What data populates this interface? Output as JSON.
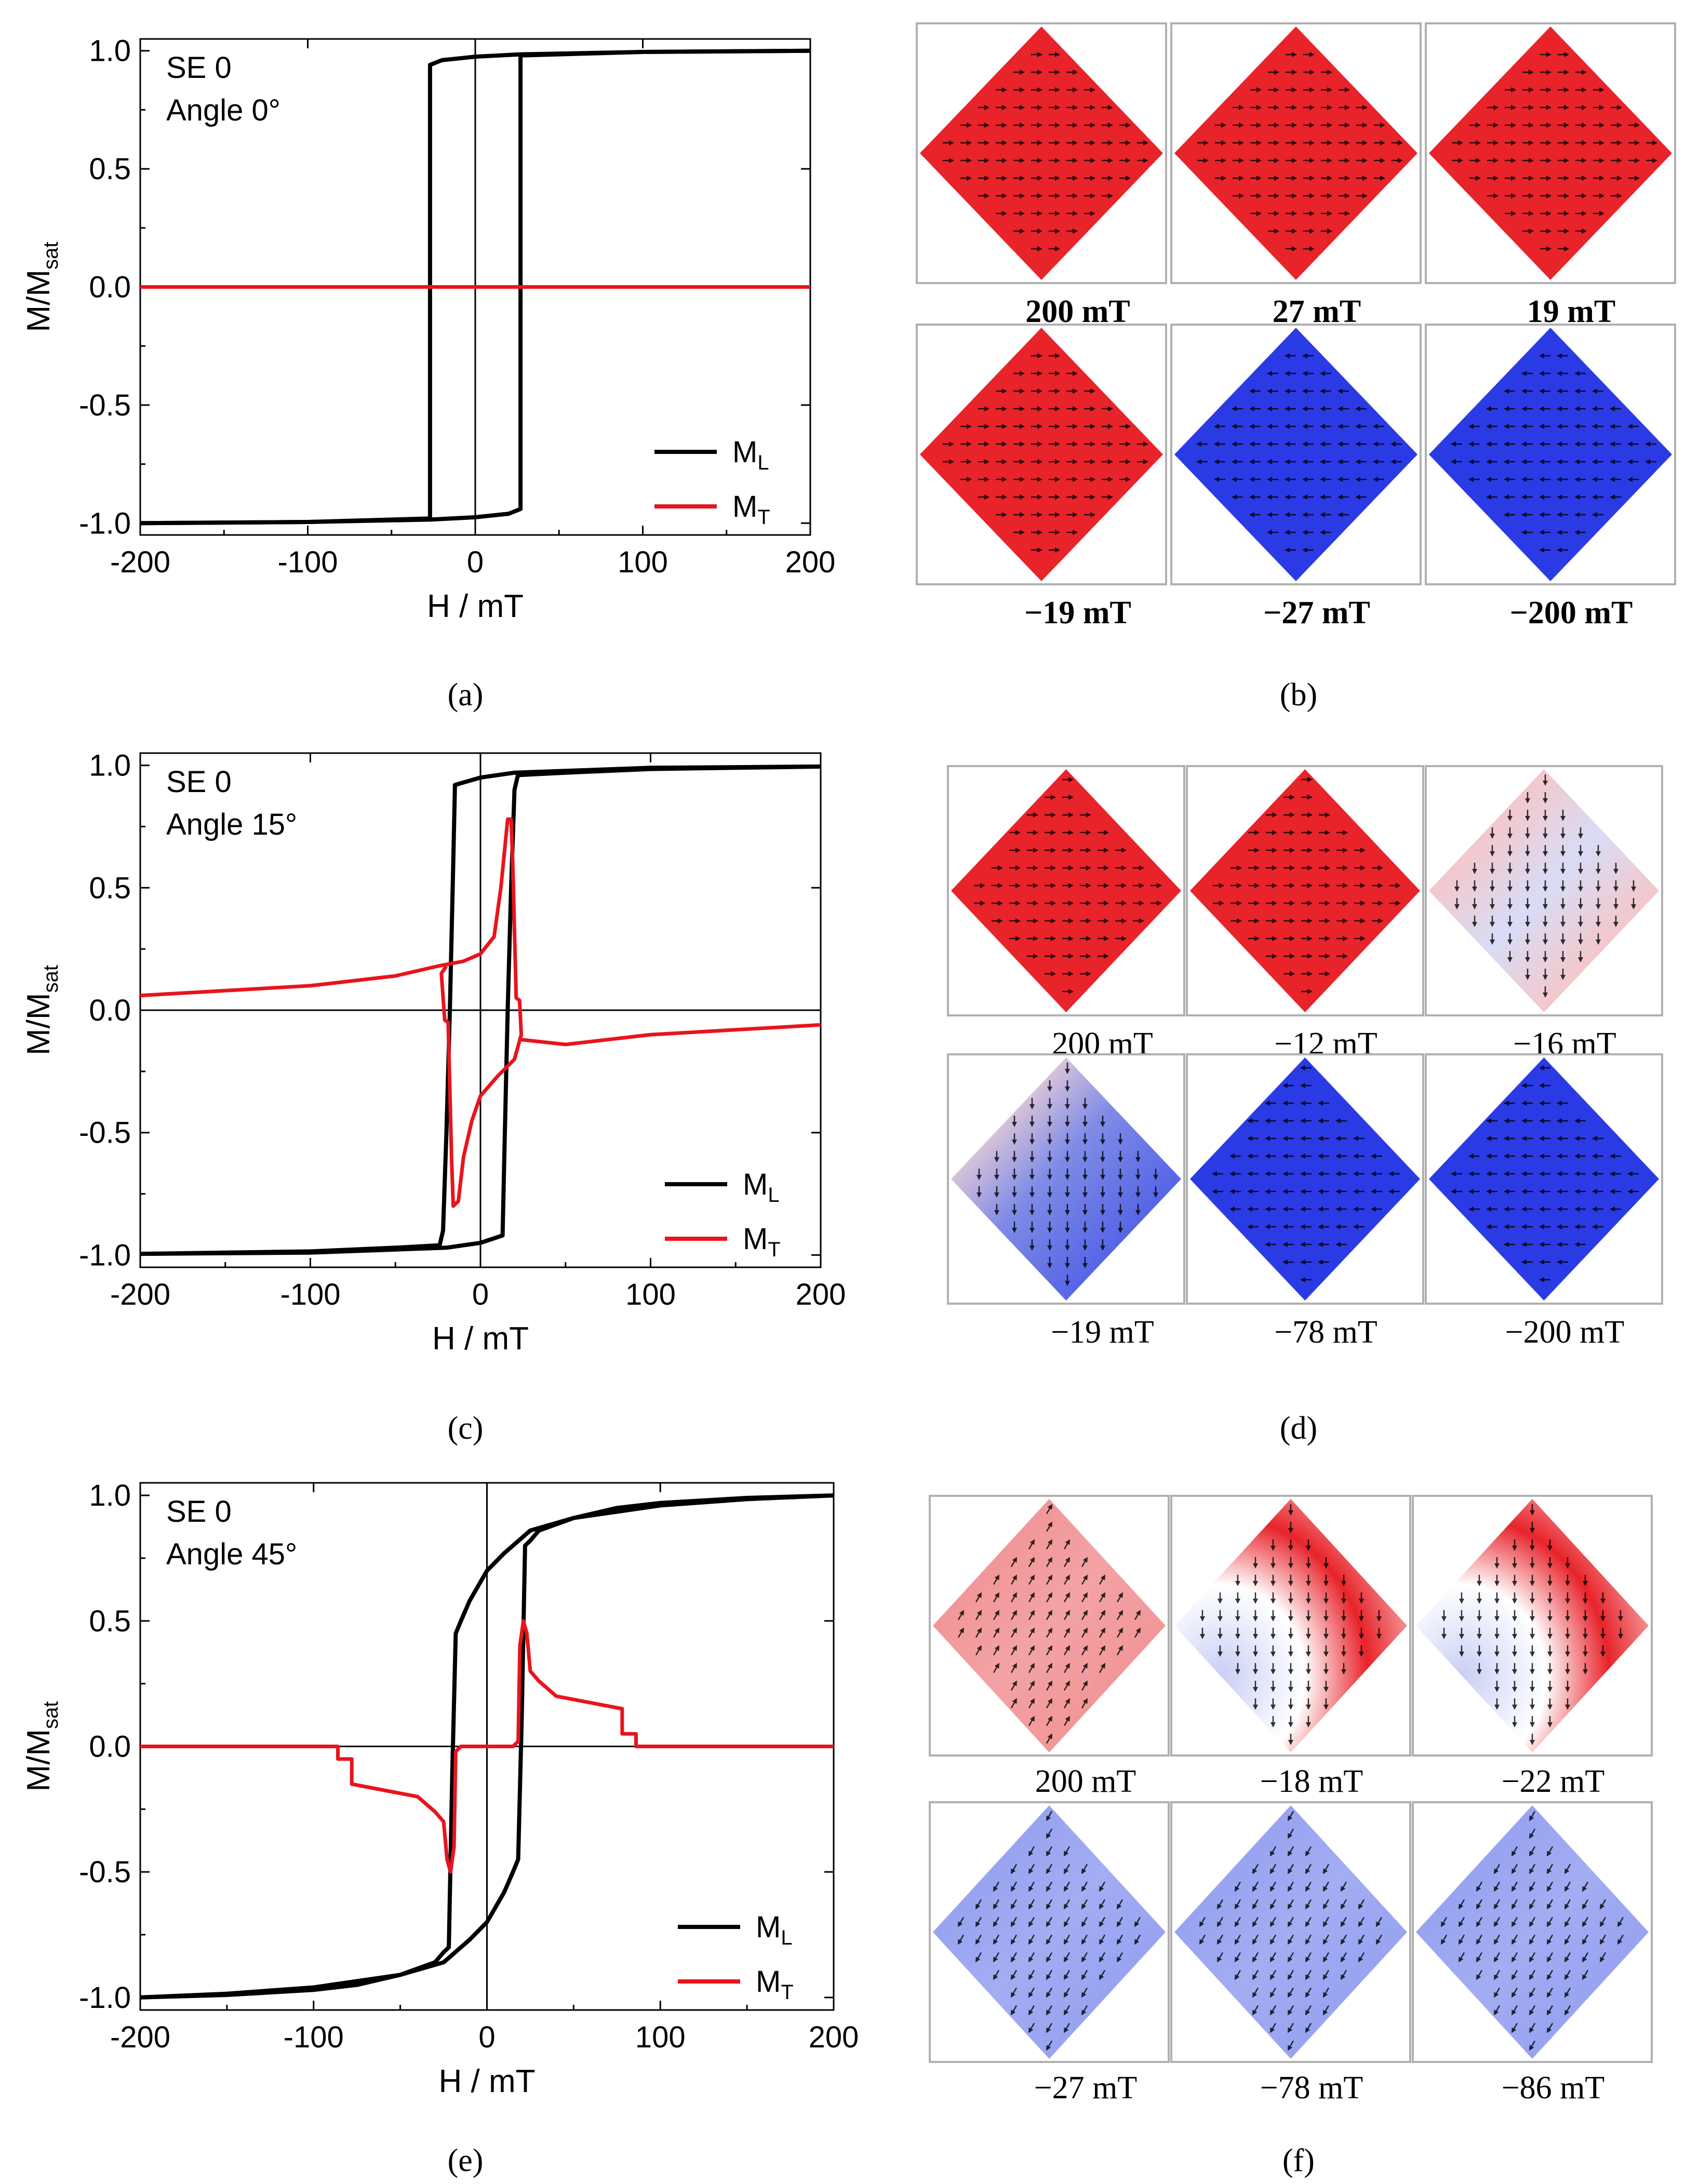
{
  "colors": {
    "ML": "#000000",
    "MT": "#e8141c",
    "red": "#e8232a",
    "blue": "#2a3be6",
    "white": "#ffffff"
  },
  "panel_labels": [
    "(a)",
    "(b)",
    "(c)",
    "(d)",
    "(e)",
    "(f)"
  ],
  "chart_data": [
    {
      "type": "line",
      "id": "a",
      "annotation": [
        "SE 0",
        "Angle 0°"
      ],
      "xlabel": "H / mT",
      "ylabel_main": "M/M",
      "ylabel_sub": "sat",
      "xlim": [
        -200,
        200
      ],
      "ylim": [
        -1.05,
        1.05
      ],
      "xticks": [
        -200,
        -100,
        0,
        100,
        200
      ],
      "xtick_labels": [
        "-200",
        "-100",
        "0",
        "100",
        "200"
      ],
      "yticks": [
        1.0,
        0.5,
        0.0,
        -0.5,
        -1.0
      ],
      "ytick_labels": [
        "1.0",
        "0.5",
        "0.0",
        "-0.5",
        "-1.0"
      ],
      "legend": [
        {
          "name": "M",
          "sub": "L"
        },
        {
          "name": "M",
          "sub": "T"
        }
      ],
      "series": [
        {
          "name": "ML",
          "color": "#000000",
          "points": [
            [
              -200,
              -1.0
            ],
            [
              -100,
              -0.995
            ],
            [
              -50,
              -0.985
            ],
            [
              -27,
              -0.98
            ],
            [
              -27,
              0.94
            ],
            [
              -20,
              0.96
            ],
            [
              0,
              0.975
            ],
            [
              27,
              0.985
            ],
            [
              100,
              0.995
            ],
            [
              200,
              1.0
            ]
          ]
        },
        {
          "name": "ML",
          "color": "#000000",
          "points": [
            [
              200,
              1.0
            ],
            [
              100,
              0.995
            ],
            [
              50,
              0.985
            ],
            [
              27,
              0.98
            ],
            [
              27,
              -0.94
            ],
            [
              20,
              -0.96
            ],
            [
              0,
              -0.975
            ],
            [
              -27,
              -0.985
            ],
            [
              -100,
              -0.995
            ],
            [
              -200,
              -1.0
            ]
          ]
        },
        {
          "name": "MT",
          "color": "#e8141c",
          "points": [
            [
              -200,
              0.0
            ],
            [
              200,
              0.0
            ]
          ]
        }
      ]
    },
    {
      "type": "line",
      "id": "c",
      "annotation": [
        "SE 0",
        "Angle 15°"
      ],
      "xlabel": "H / mT",
      "ylabel_main": "M/M",
      "ylabel_sub": "sat",
      "xlim": [
        -200,
        200
      ],
      "ylim": [
        -1.05,
        1.05
      ],
      "xticks": [
        -200,
        -100,
        0,
        100,
        200
      ],
      "xtick_labels": [
        "-200",
        "-100",
        "0",
        "100",
        "200"
      ],
      "yticks": [
        1.0,
        0.5,
        0.0,
        -0.5,
        -1.0
      ],
      "ytick_labels": [
        "1.0",
        "0.5",
        "0.0",
        "-0.5",
        "-1.0"
      ],
      "legend": [
        {
          "name": "M",
          "sub": "L"
        },
        {
          "name": "M",
          "sub": "T"
        }
      ],
      "series": [
        {
          "name": "ML",
          "color": "#000000",
          "points": [
            [
              200,
              0.995
            ],
            [
              100,
              0.985
            ],
            [
              50,
              0.97
            ],
            [
              22,
              0.96
            ],
            [
              20,
              0.9
            ],
            [
              18,
              0.5
            ],
            [
              16,
              0.0
            ],
            [
              14,
              -0.6
            ],
            [
              13,
              -0.92
            ],
            [
              0,
              -0.95
            ],
            [
              -20,
              -0.97
            ],
            [
              -100,
              -0.99
            ],
            [
              -200,
              -0.995
            ]
          ]
        },
        {
          "name": "ML",
          "color": "#000000",
          "points": [
            [
              -200,
              -0.995
            ],
            [
              -100,
              -0.985
            ],
            [
              -50,
              -0.97
            ],
            [
              -24,
              -0.96
            ],
            [
              -22,
              -0.9
            ],
            [
              -20,
              -0.5
            ],
            [
              -18,
              0.0
            ],
            [
              -16,
              0.6
            ],
            [
              -15,
              0.92
            ],
            [
              0,
              0.95
            ],
            [
              20,
              0.97
            ],
            [
              100,
              0.99
            ],
            [
              200,
              0.995
            ]
          ]
        },
        {
          "name": "MT",
          "color": "#e8141c",
          "points": [
            [
              -200,
              0.06
            ],
            [
              -100,
              0.1
            ],
            [
              -50,
              0.14
            ],
            [
              -25,
              0.18
            ],
            [
              -10,
              0.2
            ],
            [
              0,
              0.23
            ],
            [
              8,
              0.3
            ],
            [
              12,
              0.5
            ],
            [
              16,
              0.78
            ],
            [
              18,
              0.78
            ],
            [
              19,
              0.6
            ],
            [
              21,
              0.05
            ],
            [
              23,
              0.04
            ],
            [
              24,
              -0.1
            ],
            [
              20,
              -0.2
            ],
            [
              10,
              -0.27
            ],
            [
              0,
              -0.35
            ],
            [
              -5,
              -0.45
            ],
            [
              -10,
              -0.6
            ],
            [
              -13,
              -0.78
            ],
            [
              -16,
              -0.8
            ],
            [
              -17,
              -0.6
            ],
            [
              -19,
              -0.05
            ],
            [
              -21,
              -0.04
            ],
            [
              -23,
              0.15
            ],
            [
              -20,
              0.18
            ]
          ]
        },
        {
          "name": "MT",
          "color": "#e8141c",
          "points": [
            [
              24,
              -0.12
            ],
            [
              50,
              -0.14
            ],
            [
              100,
              -0.1
            ],
            [
              200,
              -0.06
            ]
          ]
        }
      ]
    },
    {
      "type": "line",
      "id": "e",
      "annotation": [
        "SE 0",
        "Angle 45°"
      ],
      "xlabel": "H / mT",
      "ylabel_main": "M/M",
      "ylabel_sub": "sat",
      "xlim": [
        -200,
        200
      ],
      "ylim": [
        -1.05,
        1.05
      ],
      "xticks": [
        -200,
        -100,
        0,
        100,
        200
      ],
      "xtick_labels": [
        "-200",
        "-100",
        "0",
        "100",
        "200"
      ],
      "yticks": [
        1.0,
        0.5,
        0.0,
        -0.5,
        -1.0
      ],
      "ytick_labels": [
        "1.0",
        "0.5",
        "0.0",
        "-0.5",
        "-1.0"
      ],
      "legend": [
        {
          "name": "M",
          "sub": "L"
        },
        {
          "name": "M",
          "sub": "T"
        }
      ],
      "series": [
        {
          "name": "ML",
          "color": "#000000",
          "points": [
            [
              -200,
              -1.0
            ],
            [
              -150,
              -0.99
            ],
            [
              -100,
              -0.97
            ],
            [
              -75,
              -0.95
            ],
            [
              -50,
              -0.91
            ],
            [
              -30,
              -0.86
            ],
            [
              -25,
              -0.82
            ],
            [
              -22,
              -0.8
            ],
            [
              -20,
              -0.1
            ],
            [
              -18,
              0.45
            ],
            [
              -15,
              0.5
            ],
            [
              -10,
              0.58
            ],
            [
              0,
              0.7
            ],
            [
              10,
              0.77
            ],
            [
              20,
              0.83
            ],
            [
              25,
              0.86
            ],
            [
              50,
              0.91
            ],
            [
              100,
              0.96
            ],
            [
              150,
              0.985
            ],
            [
              200,
              1.0
            ]
          ]
        },
        {
          "name": "ML",
          "color": "#000000",
          "points": [
            [
              200,
              1.0
            ],
            [
              150,
              0.99
            ],
            [
              100,
              0.97
            ],
            [
              75,
              0.95
            ],
            [
              50,
              0.91
            ],
            [
              30,
              0.86
            ],
            [
              25,
              0.82
            ],
            [
              22,
              0.8
            ],
            [
              20,
              0.1
            ],
            [
              18,
              -0.45
            ],
            [
              15,
              -0.5
            ],
            [
              10,
              -0.58
            ],
            [
              0,
              -0.7
            ],
            [
              -10,
              -0.77
            ],
            [
              -20,
              -0.83
            ],
            [
              -25,
              -0.86
            ],
            [
              -50,
              -0.91
            ],
            [
              -100,
              -0.96
            ],
            [
              -150,
              -0.985
            ],
            [
              -200,
              -1.0
            ]
          ]
        },
        {
          "name": "MT",
          "color": "#e8141c",
          "points": [
            [
              -200,
              0.0
            ],
            [
              -86,
              0.0
            ],
            [
              -86,
              -0.05
            ],
            [
              -78,
              -0.05
            ],
            [
              -78,
              -0.15
            ],
            [
              -40,
              -0.2
            ],
            [
              -30,
              -0.26
            ],
            [
              -25,
              -0.3
            ],
            [
              -23,
              -0.45
            ],
            [
              -21,
              -0.5
            ],
            [
              -19,
              -0.4
            ],
            [
              -18,
              -0.02
            ],
            [
              -15,
              0.0
            ],
            [
              0,
              0.0
            ],
            [
              15,
              0.0
            ],
            [
              18,
              0.02
            ],
            [
              19,
              0.4
            ],
            [
              21,
              0.5
            ],
            [
              23,
              0.45
            ],
            [
              25,
              0.3
            ],
            [
              30,
              0.26
            ],
            [
              40,
              0.2
            ],
            [
              78,
              0.15
            ],
            [
              78,
              0.05
            ],
            [
              86,
              0.05
            ],
            [
              86,
              0.0
            ],
            [
              200,
              0.0
            ]
          ]
        }
      ]
    }
  ],
  "simulations": [
    {
      "id": "b",
      "bold": true,
      "tiles": [
        {
          "label": "200 mT",
          "field": "solid",
          "color": "red",
          "arrows": "right"
        },
        {
          "label": "27 mT",
          "field": "solid",
          "color": "red",
          "arrows": "right"
        },
        {
          "label": "19 mT",
          "field": "solid",
          "color": "red",
          "arrows": "right"
        },
        {
          "label": "−19 mT",
          "field": "solid",
          "color": "red",
          "arrows": "right"
        },
        {
          "label": "−27 mT",
          "field": "solid",
          "color": "blue",
          "arrows": "left"
        },
        {
          "label": "−200 mT",
          "field": "solid",
          "color": "blue",
          "arrows": "left"
        }
      ]
    },
    {
      "id": "d",
      "bold": false,
      "tiles": [
        {
          "label": "200 mT",
          "field": "solid",
          "color": "red",
          "arrows": "right"
        },
        {
          "label": "−12 mT",
          "field": "solid",
          "color": "red",
          "arrows": "right"
        },
        {
          "label": "−16 mT",
          "field": "stripe",
          "color": "red",
          "arrows": "down"
        },
        {
          "label": "−19 mT",
          "field": "mixed",
          "color": "blue",
          "arrows": "down"
        },
        {
          "label": "−78 mT",
          "field": "solid",
          "color": "blue",
          "arrows": "left"
        },
        {
          "label": "−200 mT",
          "field": "solid",
          "color": "blue",
          "arrows": "left"
        }
      ]
    },
    {
      "id": "f",
      "bold": false,
      "tiles": [
        {
          "label": "200 mT",
          "field": "pale",
          "color": "red",
          "arrows": "upright"
        },
        {
          "label": "−18 mT",
          "field": "vortex",
          "color": "red",
          "arrows": "down"
        },
        {
          "label": "−22 mT",
          "field": "vortex",
          "color": "red",
          "arrows": "down"
        },
        {
          "label": "−27 mT",
          "field": "pale",
          "color": "blue",
          "arrows": "downleft"
        },
        {
          "label": "−78 mT",
          "field": "pale",
          "color": "blue",
          "arrows": "downleft"
        },
        {
          "label": "−86 mT",
          "field": "pale",
          "color": "blue",
          "arrows": "downleft"
        }
      ]
    }
  ]
}
